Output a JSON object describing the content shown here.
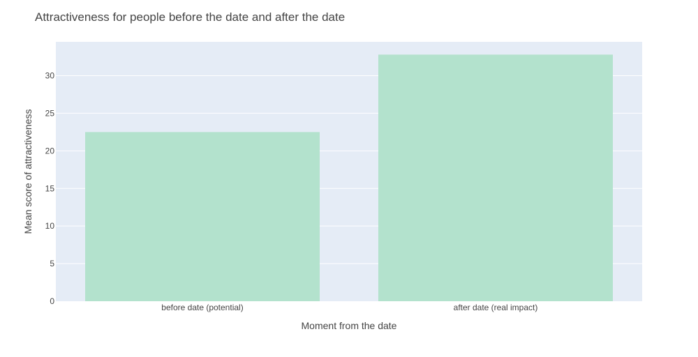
{
  "chart_data": {
    "type": "bar",
    "title": "Attractiveness for people before the date and after the date",
    "xlabel": "Moment from the date",
    "ylabel": "Mean score of attractiveness",
    "categories": [
      "before date (potential)",
      "after date (real impact)"
    ],
    "values": [
      22.5,
      32.8
    ],
    "ylim": [
      0,
      34.5
    ],
    "yticks": [
      0,
      5,
      10,
      15,
      20,
      25,
      30
    ],
    "grid": true,
    "colors": {
      "bar": "#b3e2cd",
      "plot_background": "#e5ecf6",
      "grid": "#ffffff",
      "text": "#444444"
    }
  }
}
